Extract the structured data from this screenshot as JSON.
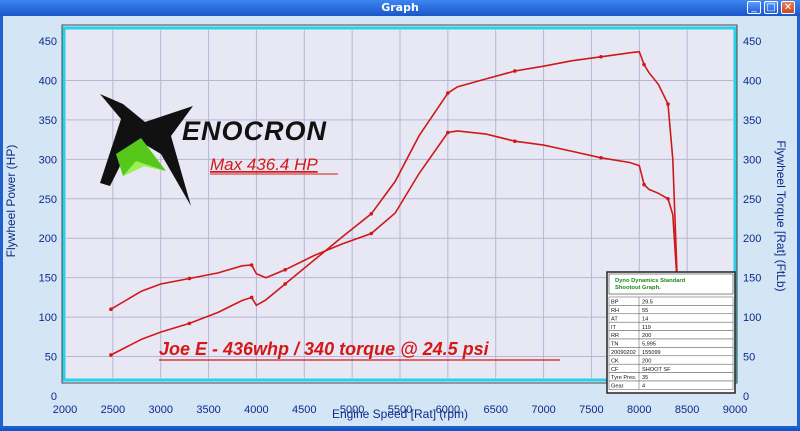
{
  "window": {
    "title": "Graph",
    "buttons": [
      "_",
      "□",
      "✕"
    ]
  },
  "chart_data": {
    "type": "line",
    "xlabel": "Engine Speed [Rat] (rpm)",
    "ylabel_left": "Flywheel Power (HP)",
    "ylabel_right": "Flywheel Torque [Rat] (FtLb)",
    "xlim": [
      2000,
      9000
    ],
    "ylim": [
      0,
      450
    ],
    "x_ticks": [
      2000,
      2500,
      3000,
      3500,
      4000,
      4500,
      5000,
      5500,
      6000,
      6500,
      7000,
      7500,
      8000,
      8500,
      9000
    ],
    "y_ticks": [
      0,
      50,
      100,
      150,
      200,
      250,
      300,
      350,
      400,
      450
    ],
    "grid": true,
    "series": [
      {
        "color": "#d01818",
        "x": [
          2480,
          2800,
          3000,
          3300,
          3600,
          3850,
          3950,
          4000,
          4100,
          4300,
          4600,
          4900,
          5200,
          5450,
          5700,
          6000,
          6100,
          6400,
          6700,
          7000,
          7300,
          7600,
          7900,
          8000,
          8050,
          8100,
          8200,
          8300,
          8350,
          8400
        ],
        "y": [
          52,
          72,
          81,
          92,
          106,
          121,
          125,
          115,
          122,
          142,
          172,
          202,
          231,
          272,
          330,
          384,
          392,
          402,
          412,
          418,
          425,
          430,
          435,
          436.4,
          420,
          410,
          395,
          370,
          300,
          135
        ]
      },
      {
        "color": "#d01818",
        "x": [
          2480,
          2800,
          3000,
          3300,
          3600,
          3850,
          3950,
          4000,
          4100,
          4300,
          4600,
          4900,
          5200,
          5450,
          5700,
          6000,
          6100,
          6400,
          6700,
          7000,
          7300,
          7600,
          7900,
          8000,
          8050,
          8100,
          8200,
          8300,
          8350,
          8400
        ],
        "y": [
          110,
          133,
          142,
          149,
          156,
          165,
          166,
          155,
          150,
          160,
          178,
          193,
          206,
          232,
          282,
          334,
          336,
          332,
          323,
          318,
          310,
          302,
          296,
          292,
          268,
          262,
          257,
          250,
          230,
          135
        ]
      }
    ]
  },
  "logo": {
    "text": "ENOCRON"
  },
  "annotations": {
    "max_hp": "Max 436.4 HP",
    "caption": "Joe E - 436whp / 340 torque @ 24.5 psi"
  },
  "info_table": {
    "title": "Dyno Dynamics Standard Shootout Graph.",
    "rows": [
      [
        "BP",
        "29.5"
      ],
      [
        "RH",
        "55"
      ],
      [
        "AT",
        "14"
      ],
      [
        "IT",
        "119"
      ],
      [
        "RR",
        "200"
      ],
      [
        "TN",
        "5,995"
      ],
      [
        "20090202",
        "155099"
      ],
      [
        "CK",
        "200"
      ],
      [
        "CF",
        "SHOOT SF"
      ],
      [
        "Tyre Pres.",
        "35"
      ],
      [
        "Gear",
        "4"
      ]
    ]
  }
}
